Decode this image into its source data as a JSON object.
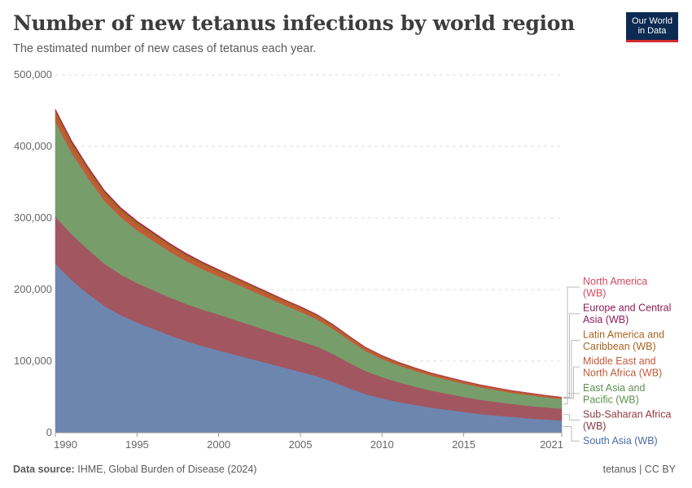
{
  "header": {
    "title": "Number of new tetanus infections by world region",
    "subtitle": "The estimated number of new cases of tetanus each year."
  },
  "logo": {
    "line1": "Our World",
    "line2": "in Data"
  },
  "footer": {
    "source_label": "Data source:",
    "source_text": "IHME, Global Burden of Disease (2024)",
    "right_text": "tetanus | CC BY"
  },
  "chart_data": {
    "type": "area",
    "stacked": true,
    "x": [
      1990,
      1991,
      1992,
      1993,
      1994,
      1995,
      1996,
      1997,
      1998,
      1999,
      2000,
      2001,
      2002,
      2003,
      2004,
      2005,
      2006,
      2007,
      2008,
      2009,
      2010,
      2011,
      2012,
      2013,
      2014,
      2015,
      2016,
      2017,
      2018,
      2019,
      2020,
      2021
    ],
    "x_ticks": [
      "1990",
      "1995",
      "2000",
      "2005",
      "2010",
      "2015",
      "2021"
    ],
    "y_ticks": [
      "0",
      "100,000",
      "200,000",
      "300,000",
      "400,000",
      "500,000"
    ],
    "ylim": [
      0,
      500000
    ],
    "grid": "horizontal dashed",
    "legend_placement": "right, labels at series ends",
    "series": [
      {
        "name": "South Asia (WB)",
        "color": "#6d86b0",
        "values": [
          236000,
          213000,
          194000,
          177000,
          164000,
          154000,
          145000,
          136000,
          128000,
          121000,
          115000,
          109000,
          103000,
          97000,
          91000,
          85000,
          79000,
          71000,
          62000,
          54000,
          48000,
          43000,
          39000,
          35000,
          32000,
          29000,
          26000,
          24000,
          22000,
          20000,
          18500,
          17000
        ]
      },
      {
        "name": "Sub-Saharan Africa (WB)",
        "color": "#a25660",
        "values": [
          66000,
          64000,
          62000,
          59000,
          57000,
          55000,
          54000,
          53000,
          52000,
          51000,
          50000,
          48500,
          47000,
          45500,
          44000,
          43000,
          41500,
          39000,
          35500,
          32000,
          29500,
          27500,
          25500,
          24000,
          22500,
          21000,
          20000,
          19000,
          18000,
          17500,
          17000,
          16500
        ]
      },
      {
        "name": "East Asia and Pacific (WB)",
        "color": "#779d6b",
        "values": [
          132000,
          114000,
          100000,
          88000,
          80000,
          74000,
          69000,
          64000,
          60000,
          56500,
          53500,
          51000,
          48500,
          46000,
          43500,
          41000,
          38000,
          35000,
          31500,
          28000,
          25500,
          23500,
          22000,
          20500,
          19500,
          18500,
          17500,
          16500,
          15500,
          15000,
          14000,
          13500
        ]
      },
      {
        "name": "Middle East and North Africa (WB)",
        "color": "#c35b38",
        "values": [
          9000,
          8500,
          8000,
          7500,
          7000,
          6700,
          6400,
          6100,
          5800,
          5500,
          5200,
          5000,
          4800,
          4600,
          4400,
          4200,
          4000,
          3700,
          3400,
          3100,
          2900,
          2700,
          2500,
          2400,
          2300,
          2200,
          2100,
          2000,
          1900,
          1800,
          1700,
          1600
        ]
      },
      {
        "name": "Latin America and Caribbean (WB)",
        "color": "#a8651f",
        "values": [
          7000,
          6500,
          6000,
          5500,
          5000,
          4700,
          4400,
          4100,
          3800,
          3500,
          3300,
          3100,
          2900,
          2700,
          2500,
          2400,
          2300,
          2100,
          1900,
          1700,
          1600,
          1500,
          1400,
          1300,
          1200,
          1100,
          1050,
          1000,
          950,
          900,
          850,
          800
        ]
      },
      {
        "name": "Europe and Central Asia (WB)",
        "color": "#8c1d5a",
        "values": [
          2000,
          1900,
          1800,
          1700,
          1600,
          1500,
          1400,
          1300,
          1200,
          1100,
          1000,
          950,
          900,
          850,
          800,
          750,
          700,
          650,
          600,
          550,
          500,
          480,
          460,
          440,
          420,
          400,
          380,
          360,
          340,
          320,
          300,
          280
        ]
      },
      {
        "name": "North America (WB)",
        "color": "#d4485f",
        "values": [
          200,
          190,
          180,
          170,
          160,
          150,
          140,
          130,
          120,
          110,
          100,
          95,
          90,
          85,
          80,
          75,
          70,
          65,
          60,
          55,
          50,
          48,
          46,
          44,
          42,
          40,
          38,
          36,
          34,
          32,
          30,
          28
        ]
      }
    ],
    "legend": [
      {
        "line1": "North America",
        "line2": "(WB)",
        "color": "#d4485f"
      },
      {
        "line1": "Europe and Central",
        "line2": "Asia (WB)",
        "color": "#8c1d5a"
      },
      {
        "line1": "Latin America and",
        "line2": "Caribbean (WB)",
        "color": "#a8651f"
      },
      {
        "line1": "Middle East and",
        "line2": "North Africa (WB)",
        "color": "#c35b38"
      },
      {
        "line1": "East Asia and",
        "line2": "Pacific (WB)",
        "color": "#5f8f4f"
      },
      {
        "line1": "Sub-Saharan Africa",
        "line2": "(WB)",
        "color": "#8c3a44"
      },
      {
        "line1": "South Asia (WB)",
        "line2": "",
        "color": "#4a6aa8"
      }
    ]
  }
}
